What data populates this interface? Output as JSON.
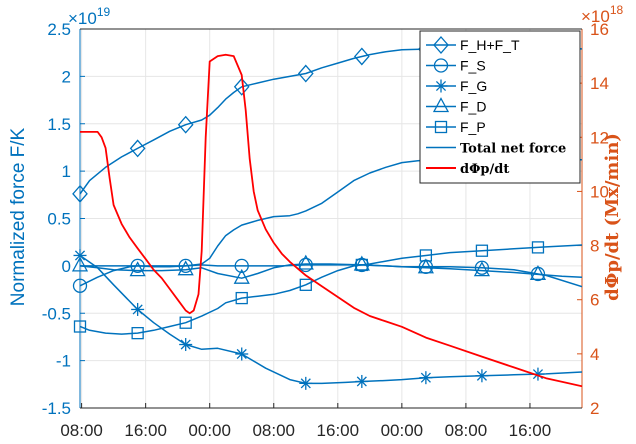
{
  "chart_data": {
    "type": "line",
    "xlabel": "",
    "ylabel_left": "Normalized force F/K",
    "ylabel_right": "dΦp/dt (Mx/min)",
    "left_exponent": "19",
    "right_exponent": "18",
    "xlim": [
      -0.2,
      62.5
    ],
    "ylim_left": [
      -1.5,
      2.5
    ],
    "ylim_right": [
      2,
      16
    ],
    "x_ticks": [
      0,
      8,
      16,
      24,
      32,
      40,
      48,
      56
    ],
    "x_tick_labels": [
      "08:00",
      "16:00",
      "00:00",
      "08:00",
      "16:00",
      "00:00",
      "08:00",
      "16:00",
      "00:00",
      "08:00"
    ],
    "x_tick_positions": [
      0,
      8,
      16,
      24,
      32,
      40,
      48,
      56,
      64,
      72
    ],
    "y_left_ticks": [
      -1.5,
      -1,
      -0.5,
      0,
      0.5,
      1,
      1.5,
      2,
      2.5
    ],
    "y_left_tick_labels": [
      "-1.5",
      "-1",
      "-0.5",
      "0",
      "0.5",
      "1",
      "1.5",
      "2",
      "2.5"
    ],
    "y_right_ticks": [
      2,
      4,
      6,
      8,
      10,
      12,
      14,
      16
    ],
    "y_right_tick_labels": [
      "2",
      "4",
      "6",
      "8",
      "10",
      "12",
      "14",
      "16"
    ],
    "grid": true,
    "legend_position": "top-right",
    "series": [
      {
        "name": "F_H+F_T",
        "axis": "left",
        "marker": "diamond",
        "color": "#0072BD",
        "points": [
          [
            -0.2,
            0.76
          ],
          [
            1,
            0.9
          ],
          [
            3,
            1.04
          ],
          [
            5,
            1.15
          ],
          [
            7,
            1.24
          ],
          [
            9,
            1.33
          ],
          [
            11,
            1.42
          ],
          [
            13,
            1.49
          ],
          [
            15,
            1.54
          ],
          [
            16,
            1.59
          ],
          [
            17,
            1.67
          ],
          [
            18,
            1.76
          ],
          [
            19,
            1.83
          ],
          [
            20,
            1.89
          ],
          [
            22,
            1.93
          ],
          [
            24,
            1.97
          ],
          [
            26,
            2.0
          ],
          [
            28,
            2.03
          ],
          [
            30,
            2.09
          ],
          [
            32,
            2.14
          ],
          [
            34,
            2.19
          ],
          [
            36,
            2.23
          ],
          [
            38,
            2.26
          ],
          [
            40,
            2.28
          ],
          [
            44,
            2.29
          ],
          [
            48,
            2.29
          ],
          [
            52,
            2.29
          ],
          [
            56,
            2.29
          ],
          [
            62.5,
            2.29
          ]
        ],
        "markers_x": [
          -0.2,
          7,
          13,
          20,
          28,
          35,
          43,
          50,
          57
        ]
      },
      {
        "name": "F_S",
        "axis": "left",
        "marker": "circle",
        "color": "#0072BD",
        "points": [
          [
            -0.2,
            -0.21
          ],
          [
            2,
            -0.12
          ],
          [
            4,
            -0.05
          ],
          [
            6,
            -0.01
          ],
          [
            7,
            0.0
          ],
          [
            9,
            -0.01
          ],
          [
            11,
            -0.01
          ],
          [
            13,
            0.0
          ],
          [
            15,
            0.01
          ],
          [
            17,
            0.0
          ],
          [
            20,
            0.0
          ],
          [
            22,
            0.0
          ],
          [
            25,
            0.0
          ],
          [
            28,
            0.01
          ],
          [
            30,
            0.01
          ],
          [
            32,
            0.01
          ],
          [
            35,
            0.01
          ],
          [
            38,
            0.0
          ],
          [
            40,
            -0.01
          ],
          [
            43,
            -0.01
          ],
          [
            46,
            -0.01
          ],
          [
            50,
            -0.02
          ],
          [
            54,
            -0.04
          ],
          [
            58,
            -0.1
          ],
          [
            62.5,
            -0.22
          ]
        ],
        "markers_x": [
          -0.2,
          7,
          13,
          20,
          28,
          35,
          43,
          50,
          57
        ]
      },
      {
        "name": "F_G",
        "axis": "left",
        "marker": "asterisk",
        "color": "#0072BD",
        "points": [
          [
            -0.2,
            0.11
          ],
          [
            2,
            -0.02
          ],
          [
            4,
            -0.2
          ],
          [
            7,
            -0.46
          ],
          [
            9,
            -0.6
          ],
          [
            11,
            -0.72
          ],
          [
            13,
            -0.83
          ],
          [
            15,
            -0.88
          ],
          [
            17,
            -0.87
          ],
          [
            20,
            -0.93
          ],
          [
            23,
            -1.08
          ],
          [
            26,
            -1.2
          ],
          [
            28,
            -1.24
          ],
          [
            30,
            -1.24
          ],
          [
            33,
            -1.23
          ],
          [
            35,
            -1.22
          ],
          [
            38,
            -1.21
          ],
          [
            40,
            -1.2
          ],
          [
            43,
            -1.18
          ],
          [
            46,
            -1.17
          ],
          [
            50,
            -1.16
          ],
          [
            54,
            -1.15
          ],
          [
            58,
            -1.14
          ],
          [
            62.5,
            -1.12
          ]
        ],
        "markers_x": [
          -0.2,
          7,
          13,
          20,
          28,
          35,
          43,
          50,
          57
        ]
      },
      {
        "name": "F_D",
        "axis": "left",
        "marker": "triangle",
        "color": "#0072BD",
        "points": [
          [
            -0.2,
            0.0
          ],
          [
            2,
            -0.02
          ],
          [
            4,
            -0.04
          ],
          [
            7,
            -0.05
          ],
          [
            10,
            -0.05
          ],
          [
            13,
            -0.04
          ],
          [
            15,
            -0.02
          ],
          [
            17,
            -0.08
          ],
          [
            20,
            -0.13
          ],
          [
            22,
            -0.08
          ],
          [
            24,
            -0.02
          ],
          [
            26,
            0.01
          ],
          [
            28,
            0.02
          ],
          [
            31,
            0.02
          ],
          [
            35,
            0.01
          ],
          [
            38,
            0.0
          ],
          [
            40,
            -0.01
          ],
          [
            43,
            -0.02
          ],
          [
            46,
            -0.03
          ],
          [
            50,
            -0.05
          ],
          [
            54,
            -0.07
          ],
          [
            57,
            -0.09
          ],
          [
            60,
            -0.11
          ],
          [
            62.5,
            -0.12
          ]
        ],
        "markers_x": [
          -0.2,
          7,
          13,
          20,
          28,
          35,
          43,
          50,
          57
        ]
      },
      {
        "name": "F_P",
        "axis": "left",
        "marker": "square",
        "color": "#0072BD",
        "points": [
          [
            -0.2,
            -0.64
          ],
          [
            1,
            -0.68
          ],
          [
            3,
            -0.71
          ],
          [
            5,
            -0.72
          ],
          [
            7,
            -0.71
          ],
          [
            9,
            -0.68
          ],
          [
            11,
            -0.64
          ],
          [
            13,
            -0.6
          ],
          [
            15,
            -0.53
          ],
          [
            17,
            -0.45
          ],
          [
            18,
            -0.39
          ],
          [
            20,
            -0.34
          ],
          [
            22,
            -0.32
          ],
          [
            24,
            -0.3
          ],
          [
            26,
            -0.26
          ],
          [
            28,
            -0.2
          ],
          [
            30,
            -0.12
          ],
          [
            32,
            -0.05
          ],
          [
            34,
            0.0
          ],
          [
            36,
            0.02
          ],
          [
            38,
            0.05
          ],
          [
            40,
            0.08
          ],
          [
            43,
            0.11
          ],
          [
            46,
            0.14
          ],
          [
            50,
            0.16
          ],
          [
            54,
            0.18
          ],
          [
            58,
            0.2
          ],
          [
            62.5,
            0.22
          ]
        ],
        "markers_x": [
          -0.2,
          7,
          13,
          20,
          28,
          35,
          43,
          50,
          57
        ]
      },
      {
        "name": "Total net force",
        "axis": "left",
        "marker": "none",
        "color": "#0072BD",
        "points": [
          [
            -0.2,
            0.0
          ],
          [
            2,
            0.0
          ],
          [
            5,
            0.0
          ],
          [
            8,
            0.0
          ],
          [
            11,
            0.0
          ],
          [
            13,
            0.0
          ],
          [
            15,
            0.02
          ],
          [
            16,
            0.08
          ],
          [
            17,
            0.21
          ],
          [
            18,
            0.32
          ],
          [
            19,
            0.38
          ],
          [
            20,
            0.43
          ],
          [
            22,
            0.48
          ],
          [
            24,
            0.52
          ],
          [
            26,
            0.53
          ],
          [
            27,
            0.55
          ],
          [
            28,
            0.58
          ],
          [
            30,
            0.66
          ],
          [
            32,
            0.78
          ],
          [
            34,
            0.9
          ],
          [
            36,
            0.98
          ],
          [
            38,
            1.04
          ],
          [
            40,
            1.09
          ],
          [
            42,
            1.11
          ],
          [
            44,
            1.12
          ],
          [
            48,
            1.12
          ],
          [
            52,
            1.12
          ],
          [
            56,
            1.12
          ],
          [
            62.5,
            1.12
          ]
        ],
        "markers_x": []
      },
      {
        "name": "dΦp/dt",
        "axis": "right",
        "marker": "none",
        "color": "#FF0000",
        "points": [
          [
            -0.2,
            12.2
          ],
          [
            1,
            12.2
          ],
          [
            2,
            12.2
          ],
          [
            2.5,
            12.0
          ],
          [
            3,
            11.6
          ],
          [
            3.5,
            10.5
          ],
          [
            4,
            9.5
          ],
          [
            5,
            8.8
          ],
          [
            6,
            8.3
          ],
          [
            7,
            7.9
          ],
          [
            8,
            7.5
          ],
          [
            9,
            7.1
          ],
          [
            10,
            6.8
          ],
          [
            11,
            6.4
          ],
          [
            12,
            6.0
          ],
          [
            13,
            5.6
          ],
          [
            13.5,
            5.5
          ],
          [
            14,
            5.6
          ],
          [
            14.6,
            6.2
          ],
          [
            15,
            7.8
          ],
          [
            15.5,
            12.0
          ],
          [
            16,
            14.8
          ],
          [
            17,
            15.0
          ],
          [
            18,
            15.05
          ],
          [
            19,
            15.0
          ],
          [
            20,
            14.3
          ],
          [
            20.5,
            13.0
          ],
          [
            21,
            11.2
          ],
          [
            21.5,
            10.0
          ],
          [
            22,
            9.3
          ],
          [
            23,
            8.6
          ],
          [
            24,
            8.1
          ],
          [
            25,
            7.7
          ],
          [
            26,
            7.4
          ],
          [
            28,
            6.9
          ],
          [
            30,
            6.5
          ],
          [
            32,
            6.1
          ],
          [
            34,
            5.7
          ],
          [
            36,
            5.4
          ],
          [
            38,
            5.2
          ],
          [
            40,
            5.0
          ],
          [
            43,
            4.6
          ],
          [
            46,
            4.3
          ],
          [
            50,
            3.9
          ],
          [
            54,
            3.5
          ],
          [
            58,
            3.1
          ],
          [
            62.5,
            2.8
          ]
        ],
        "markers_x": []
      }
    ],
    "legend": [
      {
        "label": "F_H+F_T",
        "marker": "diamond"
      },
      {
        "label": "F_S",
        "marker": "circle"
      },
      {
        "label": "F_G",
        "marker": "asterisk"
      },
      {
        "label": "F_D",
        "marker": "triangle"
      },
      {
        "label": "F_P",
        "marker": "square"
      },
      {
        "label": "Total net force",
        "marker": "line"
      },
      {
        "label": "dΦp/dt",
        "marker": "line-red"
      }
    ]
  }
}
